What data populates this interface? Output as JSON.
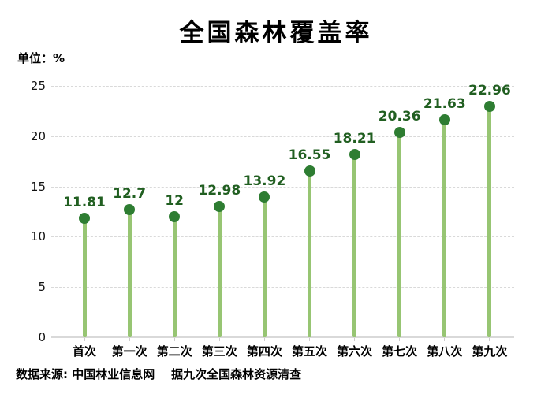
{
  "title": "全国森林覆盖率",
  "unit_label": "单位：%",
  "source_note": "数据来源: 中国林业信息网    据九次全国森林资源清查",
  "colors": {
    "stem_green": "#97c573",
    "dot_green": "#2e7d32",
    "value_label_green": "#215f21",
    "gridline_gray": "#d9d9d9",
    "axis_gray": "#d9d9d9",
    "text_black": "#000000"
  },
  "chart_data": {
    "type": "lollipop",
    "title": "全国森林覆盖率",
    "unit": "单位：%",
    "categories": [
      "首次",
      "第一次",
      "第二次",
      "第三次",
      "第四次",
      "第五次",
      "第六次",
      "第七次",
      "第八次",
      "第九次"
    ],
    "values": [
      11.81,
      12.7,
      12,
      12.98,
      13.92,
      16.55,
      18.21,
      20.36,
      21.63,
      22.96
    ],
    "value_labels": [
      "11.81",
      "12.7",
      "12",
      "12.98",
      "13.92",
      "16.55",
      "18.21",
      "20.36",
      "21.63",
      "22.96"
    ],
    "ylim": [
      0,
      25
    ],
    "yticks": [
      0,
      5,
      10,
      15,
      20,
      25
    ],
    "grid": "horizontal dashed, baseline solid",
    "legend_position": "none",
    "source_note": "数据来源: 中国林业信息网    据九次全国森林资源清查"
  }
}
